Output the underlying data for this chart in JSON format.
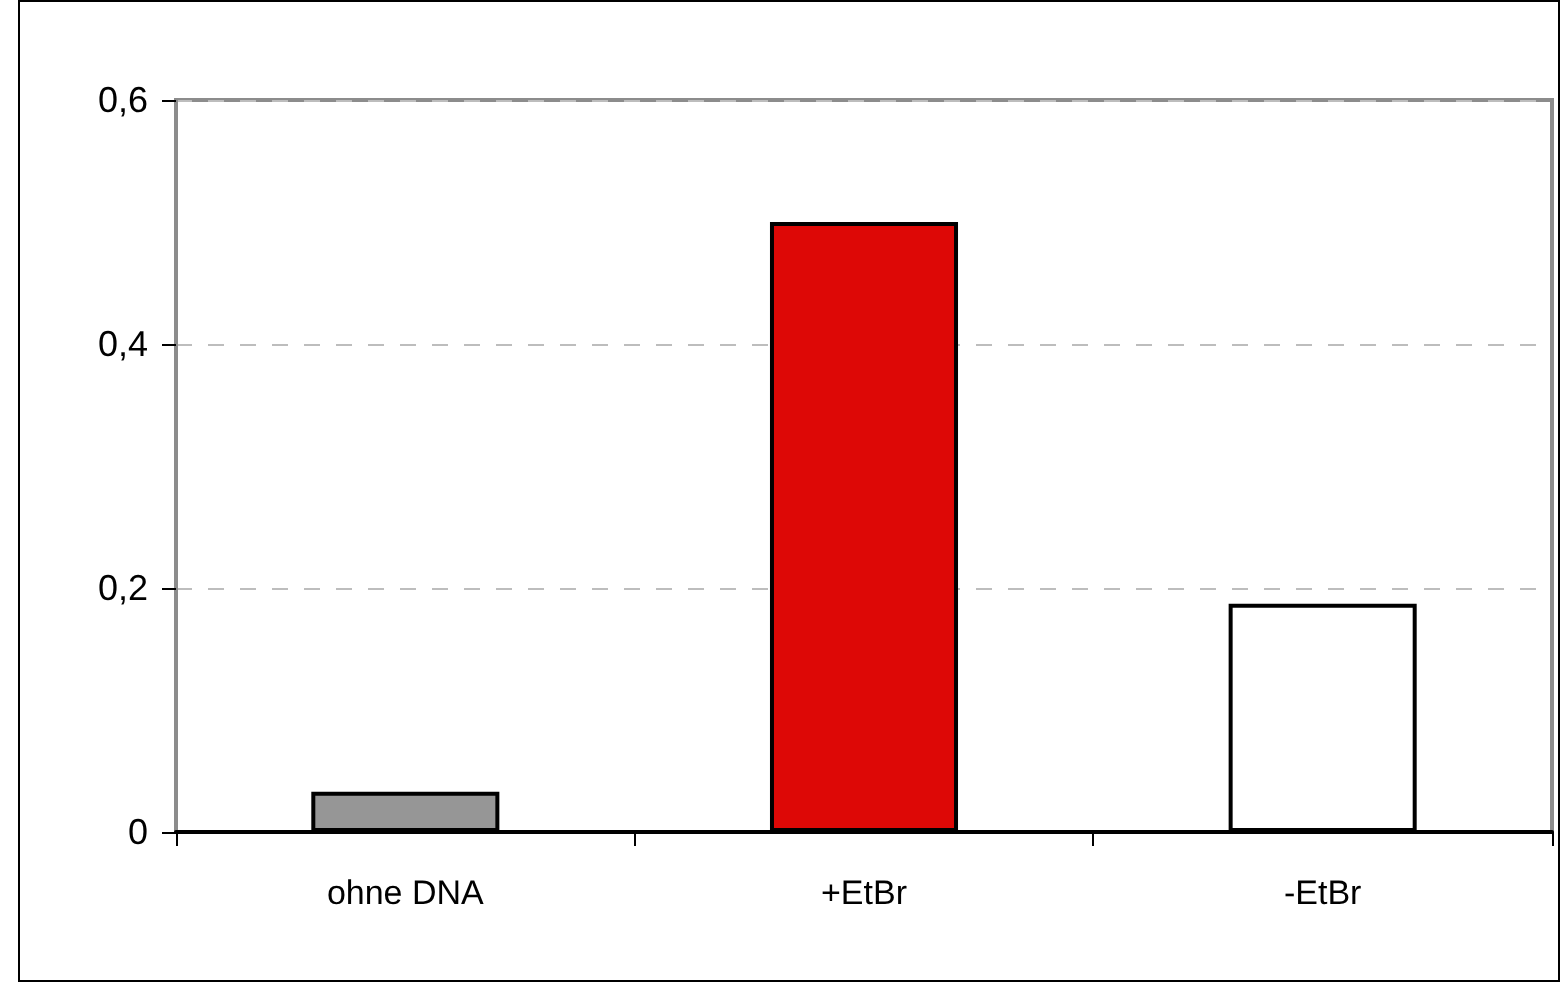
{
  "chart_data": {
    "type": "bar",
    "categories": [
      "ohne DNA",
      "+EtBr",
      "-EtBr"
    ],
    "values": [
      0.033,
      0.5,
      0.187
    ],
    "colors": [
      "#969696",
      "#dd0806",
      "#ffffff"
    ],
    "ylim": [
      0,
      0.6
    ],
    "yticks": [
      0,
      {
        "value": 0.2,
        "label": "0,2"
      },
      {
        "value": 0.4,
        "label": "0,4"
      },
      {
        "value": 0.6,
        "label": "0,6"
      }
    ],
    "grid": "y"
  }
}
